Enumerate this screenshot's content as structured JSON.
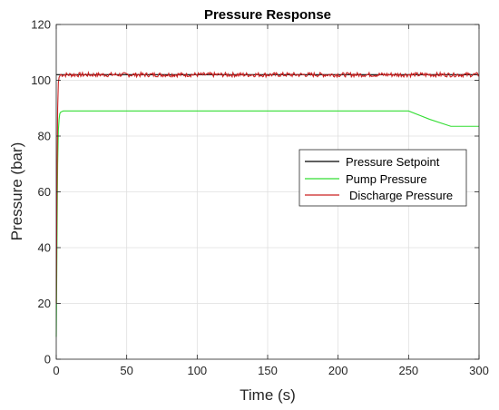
{
  "chart_data": {
    "type": "line",
    "title": "Pressure Response",
    "xlabel": "Time (s)",
    "ylabel": "Pressure (bar)",
    "xlim": [
      0,
      300
    ],
    "ylim": [
      0,
      120
    ],
    "x_ticks": [
      0,
      50,
      100,
      150,
      200,
      250,
      300
    ],
    "y_ticks": [
      0,
      20,
      40,
      60,
      80,
      100,
      120
    ],
    "grid": true,
    "legend_position": "right",
    "series": [
      {
        "name": "Pressure Setpoint",
        "color": "#000000",
        "x": [
          0,
          300
        ],
        "y": [
          102,
          102
        ]
      },
      {
        "name": "Pump Pressure",
        "color": "#33dd33",
        "x": [
          0,
          0.5,
          1,
          1.5,
          2,
          2.5,
          3,
          4,
          5,
          10,
          50,
          100,
          150,
          200,
          250,
          265,
          280,
          300
        ],
        "y": [
          8,
          40,
          70,
          82,
          86,
          88,
          88.5,
          88.8,
          89,
          89,
          89,
          89,
          89,
          89,
          89,
          86,
          83.5,
          83.5
        ]
      },
      {
        "name": "Discharge Pressure",
        "color": "#cc2222",
        "x": [
          0,
          0.5,
          1,
          1.5,
          2,
          3,
          300
        ],
        "y": [
          20,
          60,
          90,
          99,
          101,
          102,
          102
        ],
        "noise_amplitude": 0.8
      }
    ]
  }
}
